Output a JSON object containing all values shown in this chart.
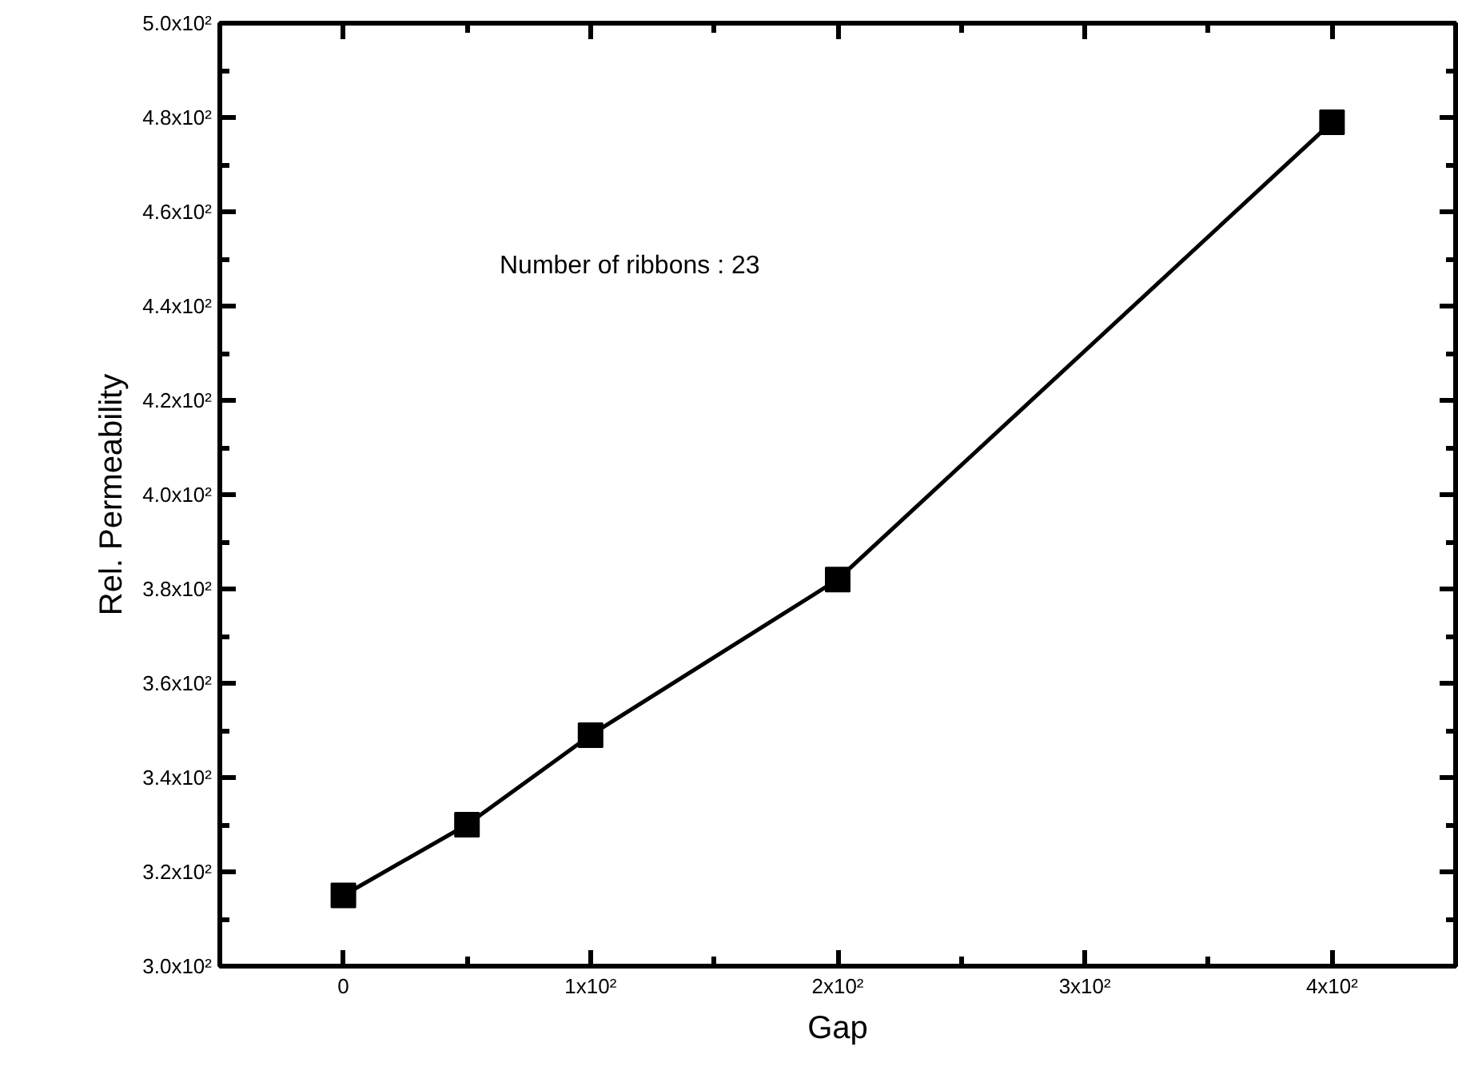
{
  "chart_data": {
    "type": "line",
    "xlabel": "Gap",
    "ylabel": "Rel. Permeability",
    "x": [
      0,
      50,
      100,
      200,
      400
    ],
    "series": [
      {
        "color": "#000000",
        "values": [
          315,
          330,
          349,
          382,
          479
        ]
      }
    ],
    "marker": "square",
    "line_style": "solid",
    "xlim": [
      -50,
      450
    ],
    "xticks": [
      0,
      {
        "value": 100,
        "label": "1x10²"
      },
      {
        "value": 200,
        "label": "2x10²"
      },
      {
        "value": 300,
        "label": "3x10²"
      },
      {
        "value": 400,
        "label": "4x10²"
      }
    ],
    "ylim": [
      300,
      500
    ],
    "yticks": [
      {
        "value": 300,
        "label": "3.0x10²"
      },
      {
        "value": 320,
        "label": "3.2x10²"
      },
      {
        "value": 340,
        "label": "3.4x10²"
      },
      {
        "value": 360,
        "label": "3.6x10²"
      },
      {
        "value": 380,
        "label": "3.8x10²"
      },
      {
        "value": 400,
        "label": "4.0x10²"
      },
      {
        "value": 420,
        "label": "4.2x10²"
      },
      {
        "value": 440,
        "label": "4.4x10²"
      },
      {
        "value": 460,
        "label": "4.6x10²"
      },
      {
        "value": 480,
        "label": "4.8x10²"
      },
      {
        "value": 500,
        "label": "5.0x10²"
      }
    ],
    "annotations": [
      "Number of ribbons : 23"
    ]
  }
}
